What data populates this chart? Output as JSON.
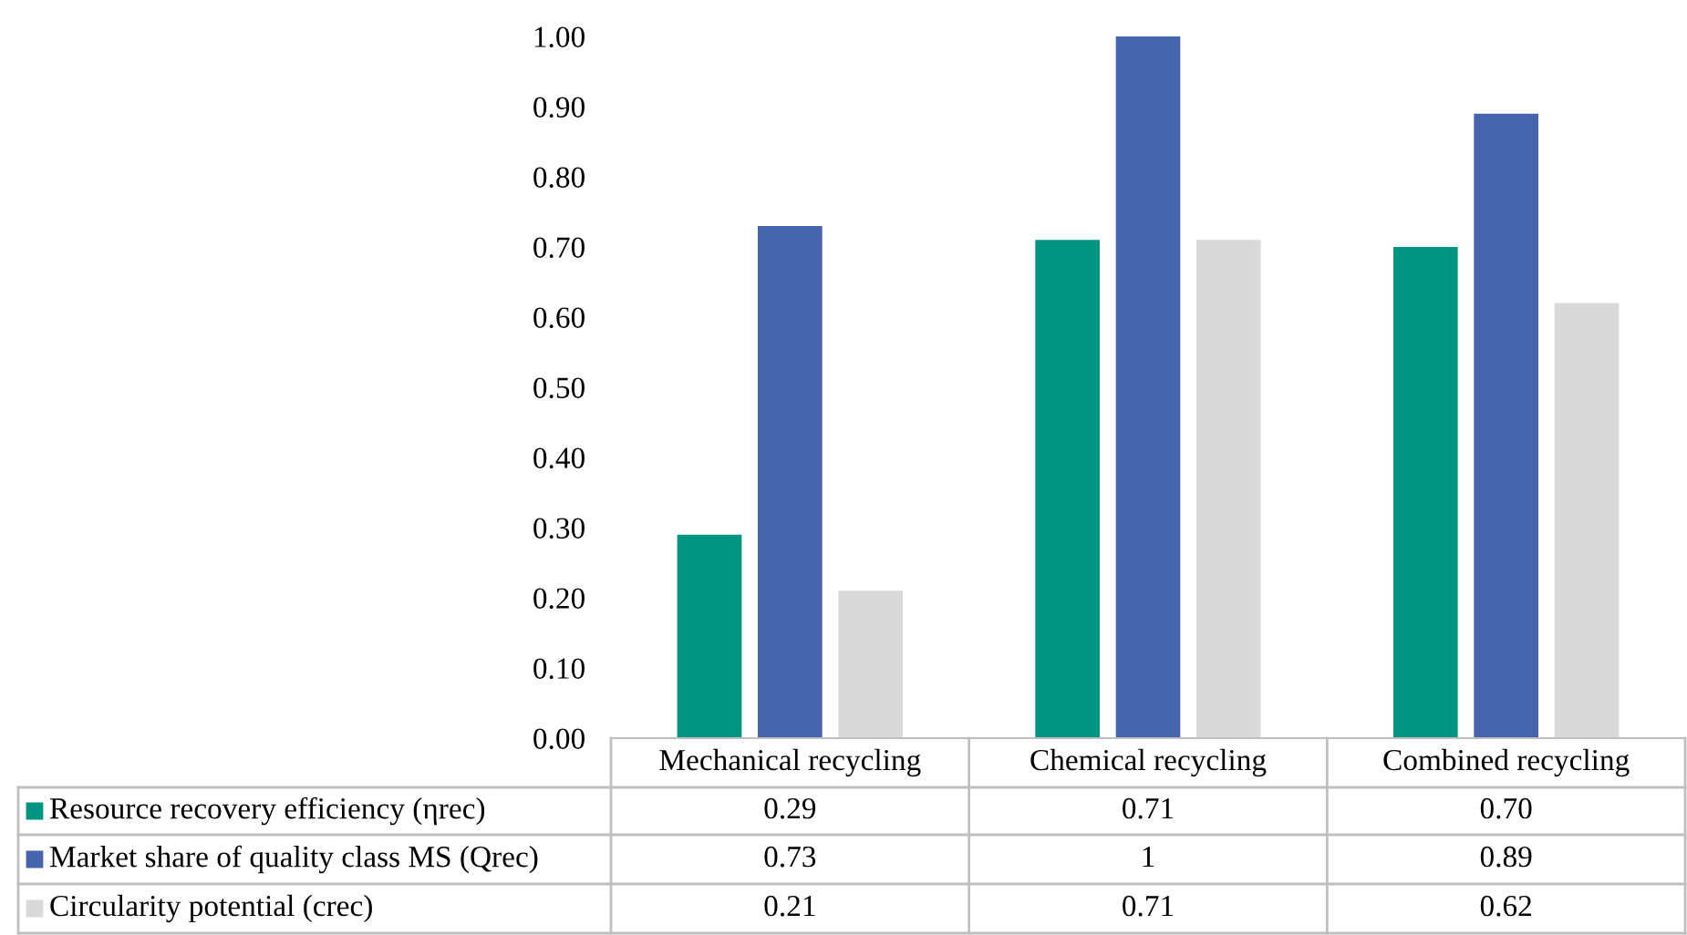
{
  "chart_data": {
    "type": "bar",
    "categories": [
      "Mechanical recycling",
      "Chemical recycling",
      "Combined recycling"
    ],
    "series": [
      {
        "name": "Resource recovery efficiency (ηrec)",
        "color": "#009581",
        "values": [
          0.29,
          0.71,
          0.7
        ],
        "value_labels": [
          "0.29",
          "0.71",
          "0.70"
        ]
      },
      {
        "name": "Market share of quality class MS (Qrec)",
        "color": "#4664ad",
        "values": [
          0.73,
          1,
          0.89
        ],
        "value_labels": [
          "0.73",
          "1",
          "0.89"
        ]
      },
      {
        "name": "Circularity potential (crec)",
        "color": "#d9d9d9",
        "values": [
          0.21,
          0.71,
          0.62
        ],
        "value_labels": [
          "0.21",
          "0.71",
          "0.62"
        ]
      }
    ],
    "ylim": [
      0,
      1
    ],
    "yticks": [
      {
        "value": 0,
        "label": "0.00"
      },
      {
        "value": 0.1,
        "label": "0.10"
      },
      {
        "value": 0.2,
        "label": "0.20"
      },
      {
        "value": 0.3,
        "label": "0.30"
      },
      {
        "value": 0.4,
        "label": "0.40"
      },
      {
        "value": 0.5,
        "label": "0.50"
      },
      {
        "value": 0.6,
        "label": "0.60"
      },
      {
        "value": 0.7,
        "label": "0.70"
      },
      {
        "value": 0.8,
        "label": "0.80"
      },
      {
        "value": 0.9,
        "label": "0.90"
      },
      {
        "value": 1,
        "label": "1.00"
      }
    ],
    "legend": "bottom"
  }
}
